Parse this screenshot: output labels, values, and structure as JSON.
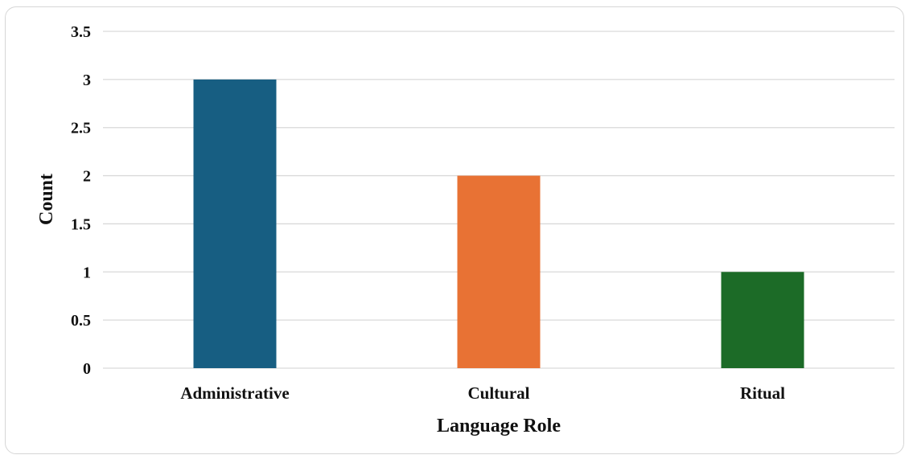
{
  "chart_data": {
    "type": "bar",
    "categories": [
      "Administrative",
      "Cultural",
      "Ritual"
    ],
    "values": [
      3,
      2,
      1
    ],
    "colors": [
      "#175E82",
      "#E87234",
      "#1C6B27"
    ],
    "title": "",
    "xlabel": "Language Role",
    "ylabel": "Count",
    "ylim": [
      0,
      3.5
    ],
    "yticks": [
      "0",
      "0.5",
      "1",
      "1.5",
      "2",
      "2.5",
      "3",
      "3.5"
    ],
    "grid": true,
    "legend": "none"
  }
}
